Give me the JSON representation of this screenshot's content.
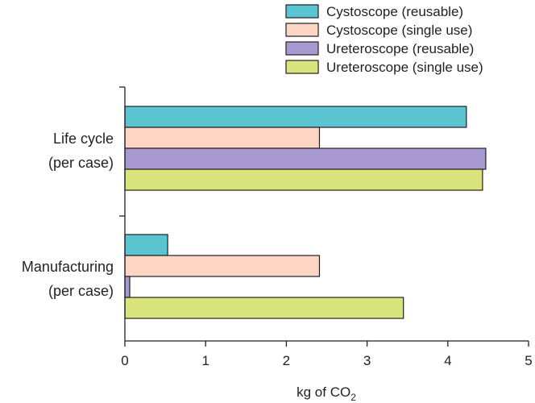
{
  "chart_data": {
    "type": "bar",
    "orientation": "horizontal",
    "title": "",
    "categories": [
      [
        "Life cycle",
        "(per case)"
      ],
      [
        "Manufacturing",
        "(per case)"
      ]
    ],
    "series": [
      {
        "name": "Cystoscope (reusable)",
        "color": "#5bc4d1",
        "values": [
          4.23,
          0.53
        ]
      },
      {
        "name": "Cystoscope (single use)",
        "color": "#fcd5c5",
        "values": [
          2.41,
          2.41
        ]
      },
      {
        "name": "Ureteroscope (reusable)",
        "color": "#a89ad1",
        "values": [
          4.47,
          0.06
        ]
      },
      {
        "name": "Ureteroscope (single use)",
        "color": "#d9e57c",
        "values": [
          4.43,
          3.45
        ]
      }
    ],
    "xlabel": {
      "text": "kg of CO",
      "subscript": "2"
    },
    "ylabel": "",
    "xlim": [
      0,
      5
    ],
    "xticks": [
      "0",
      "1",
      "2",
      "3",
      "4",
      "5"
    ],
    "grid": false,
    "legend_position": "top-right"
  }
}
